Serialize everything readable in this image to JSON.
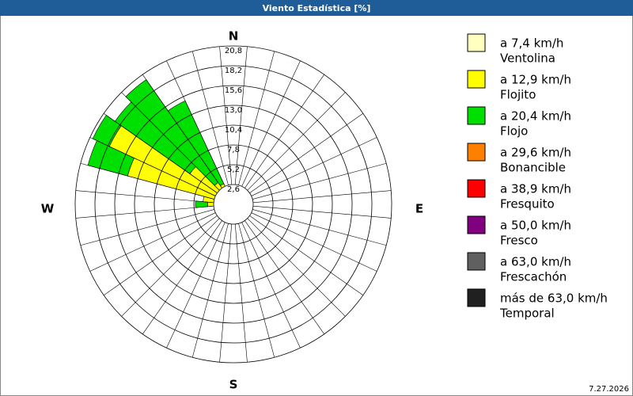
{
  "chart_data": {
    "type": "windrose",
    "title": "Viento Estadística [%]",
    "compass": [
      "N",
      "E",
      "S",
      "W"
    ],
    "directions": [
      270,
      280,
      290,
      300,
      310,
      320,
      330,
      340
    ],
    "rlim": [
      0,
      20.8
    ],
    "rticks": [
      {
        "value": 2.6,
        "label": "2,6"
      },
      {
        "value": 5.2,
        "label": "5,2"
      },
      {
        "value": 7.8,
        "label": "7,8"
      },
      {
        "value": 10.4,
        "label": "10,4"
      },
      {
        "value": 13.0,
        "label": "13,0"
      },
      {
        "value": 15.6,
        "label": "15,6"
      },
      {
        "value": 18.2,
        "label": "18,2"
      },
      {
        "value": 20.8,
        "label": "20,8"
      }
    ],
    "series": [
      {
        "name": "a 7,4 km/h",
        "class": "Ventolina",
        "color": "#ffffc0",
        "values": [
          1.0,
          1.0,
          1.0,
          1.0,
          1.0,
          1.0,
          1.0,
          0.5
        ]
      },
      {
        "name": "a 12,9 km/h",
        "class": "Flojito",
        "color": "#ffff00",
        "values": [
          2.4,
          3.0,
          13.4,
          17.0,
          6.0,
          2.5,
          2.0,
          1.0
        ]
      },
      {
        "name": "a 20,4 km/h",
        "class": "Flojo",
        "color": "#00e000",
        "values": [
          1.6,
          0,
          5.4,
          2.4,
          12.0,
          16.5,
          12.0,
          0
        ]
      },
      {
        "name": "a 29,6 km/h",
        "class": "Bonancible",
        "color": "#ff8000",
        "values": [
          0,
          0,
          0,
          0,
          0,
          0,
          0,
          0
        ]
      },
      {
        "name": "a 38,9 km/h",
        "class": "Fresquito",
        "color": "#ff0000",
        "values": [
          0,
          0,
          0,
          0,
          0,
          0,
          0,
          0
        ]
      },
      {
        "name": "a 50,0 km/h",
        "class": "Fresco",
        "color": "#800080",
        "values": [
          0,
          0,
          0,
          0,
          0,
          0,
          0,
          0
        ]
      },
      {
        "name": "a 63,0 km/h",
        "class": "Frescachón",
        "color": "#606060",
        "values": [
          0,
          0,
          0,
          0,
          0,
          0,
          0,
          0
        ]
      },
      {
        "name": "más de 63,0 km/h",
        "class": "Temporal",
        "color": "#202020",
        "values": [
          0,
          0,
          0,
          0,
          0,
          0,
          0,
          0
        ]
      }
    ],
    "date": "7.27.2026"
  }
}
